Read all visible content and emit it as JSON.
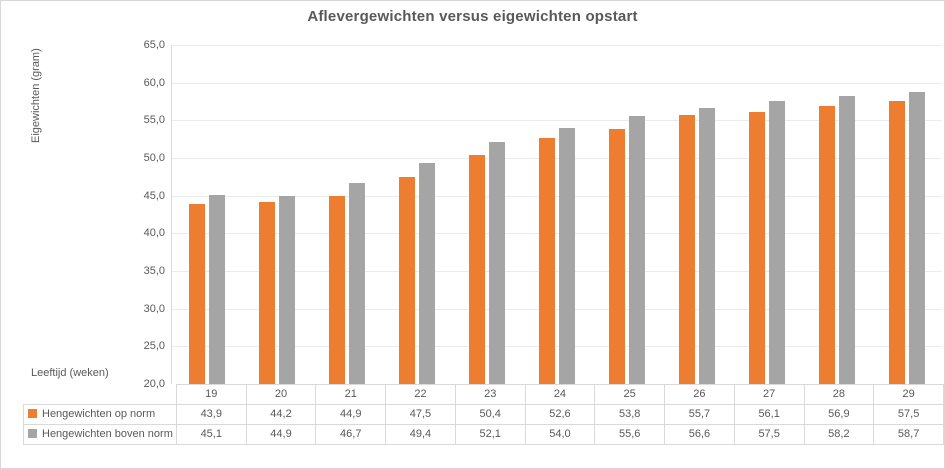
{
  "chart_data": {
    "type": "bar",
    "title": "Aflevergewichten versus eigewichten opstart",
    "xlabel": "Leeftijd (weken)",
    "ylabel": "Eigewichten (gram)",
    "categories": [
      "19",
      "20",
      "21",
      "22",
      "23",
      "24",
      "25",
      "26",
      "27",
      "28",
      "29"
    ],
    "series": [
      {
        "name": "Hengewichten op norm",
        "color": "#ED7D31",
        "values": [
          43.9,
          44.2,
          44.9,
          47.5,
          50.4,
          52.6,
          53.8,
          55.7,
          56.1,
          56.9,
          57.5
        ]
      },
      {
        "name": "Hengewichten boven norm",
        "color": "#A5A5A5",
        "values": [
          45.1,
          44.9,
          46.7,
          49.4,
          52.1,
          54.0,
          55.6,
          56.6,
          57.5,
          58.2,
          58.7
        ]
      }
    ],
    "ylim": [
      20,
      65
    ],
    "ytick_step": 5,
    "ytick_labels": [
      "65,0",
      "60,0",
      "55,0",
      "50,0",
      "45,0",
      "40,0",
      "35,0",
      "30,0",
      "25,0",
      "20,0"
    ],
    "grid": true,
    "legend_position": "data-table-left",
    "colors": {
      "text": "#595959",
      "border": "#D9D9D9",
      "gridline": "#ECECEC",
      "background": "#FFFFFF"
    }
  }
}
